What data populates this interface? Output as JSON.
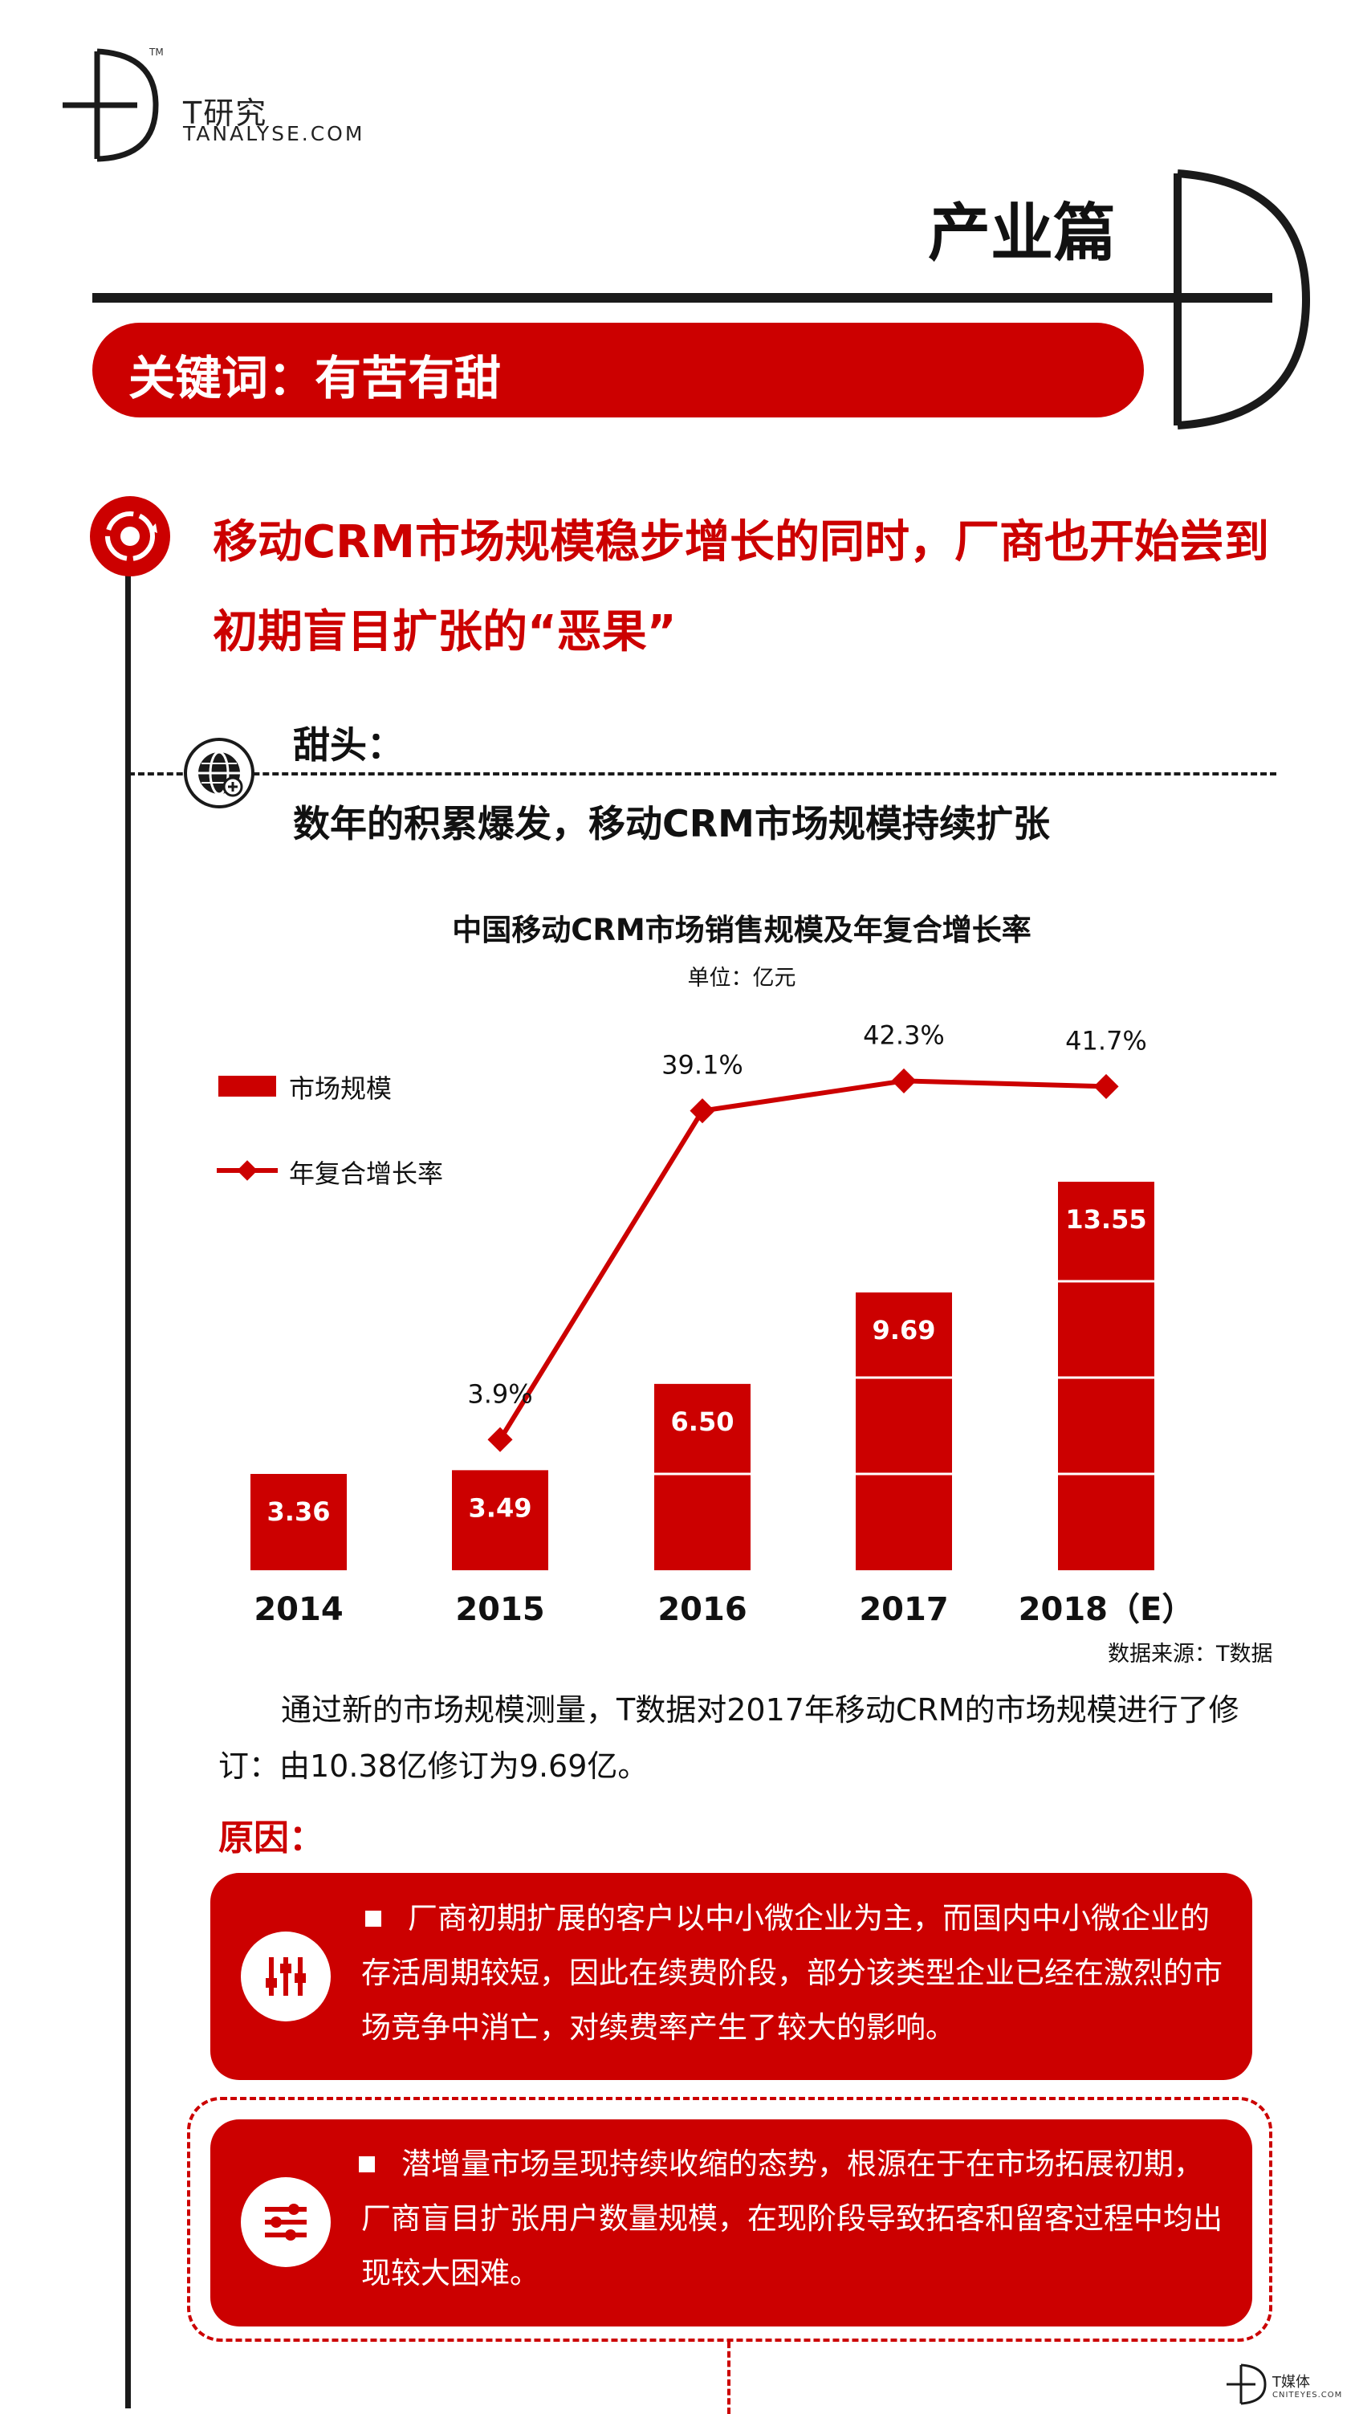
{
  "header": {
    "brand_name": "T研究",
    "brand_url": "TANALYSE.COM",
    "tm": "TM",
    "section_title": "产业篇",
    "keyword": "关键词：有苦有甜"
  },
  "headline": "移动CRM市场规模稳步增长的同时，厂商也开始尝到初期盲目扩张的“恶果”",
  "sweet": {
    "label": "甜头：",
    "subtitle": "数年的积累爆发，移动CRM市场规模持续扩张"
  },
  "colors": {
    "accent": "#cc0000",
    "dark": "#1a1a1a"
  },
  "chart_data": {
    "type": "bar",
    "title": "中国移动CRM市场销售规模及年复合增长率",
    "unit": "单位：亿元",
    "categories": [
      "2014",
      "2015",
      "2016",
      "2017",
      "2018（E）"
    ],
    "series": [
      {
        "name": "市场规模",
        "type": "bar",
        "values": [
          3.36,
          3.49,
          6.5,
          9.69,
          13.55
        ],
        "labels": [
          "3.36",
          "3.49",
          "6.50",
          "9.69",
          "13.55"
        ]
      },
      {
        "name": "年复合增长率",
        "type": "line",
        "values": [
          null,
          3.9,
          39.1,
          42.3,
          41.7
        ],
        "labels": [
          "",
          "3.9%",
          "39.1%",
          "42.3%",
          "41.7%"
        ]
      }
    ],
    "ylim": [
      0,
      14
    ],
    "y2lim": [
      -10,
      45
    ],
    "legend": "top-left"
  },
  "source": "数据来源：T数据",
  "paragraph": "通过新的市场规模测量，T数据对2017年移动CRM的市场规模进行了修订：由10.38亿修订为9.69亿。",
  "reasons": {
    "title": "原因：",
    "items": [
      {
        "icon": "equalizer-icon",
        "text": "厂商初期扩展的客户以中小微企业为主，而国内中小微企业的存活周期较短，因此在续费阶段，部分该类型企业已经在激烈的市场竞争中消亡，对续费率产生了较大的影响。"
      },
      {
        "icon": "sliders-icon",
        "text": "潜增量市场呈现持续收缩的态势，根源在于在市场拓展初期，厂商盲目扩张用户数量规模，在现阶段导致拓客和留客过程中均出现较大困难。"
      }
    ]
  },
  "footer": {
    "brand": "T媒体",
    "url": "CNITEYES.COM"
  }
}
